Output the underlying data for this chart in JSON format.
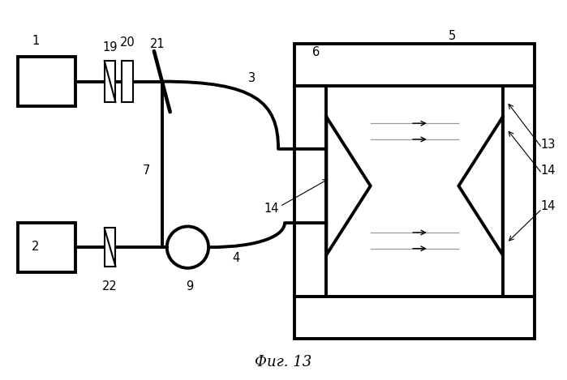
{
  "bg_color": "#ffffff",
  "line_color": "#000000",
  "thick_lw": 2.8,
  "thin_lw": 1.2,
  "caption": "Фиг. 13",
  "caption_fontsize": 13,
  "fig_width": 6.99,
  "fig_height": 4.69,
  "dpi": 100
}
